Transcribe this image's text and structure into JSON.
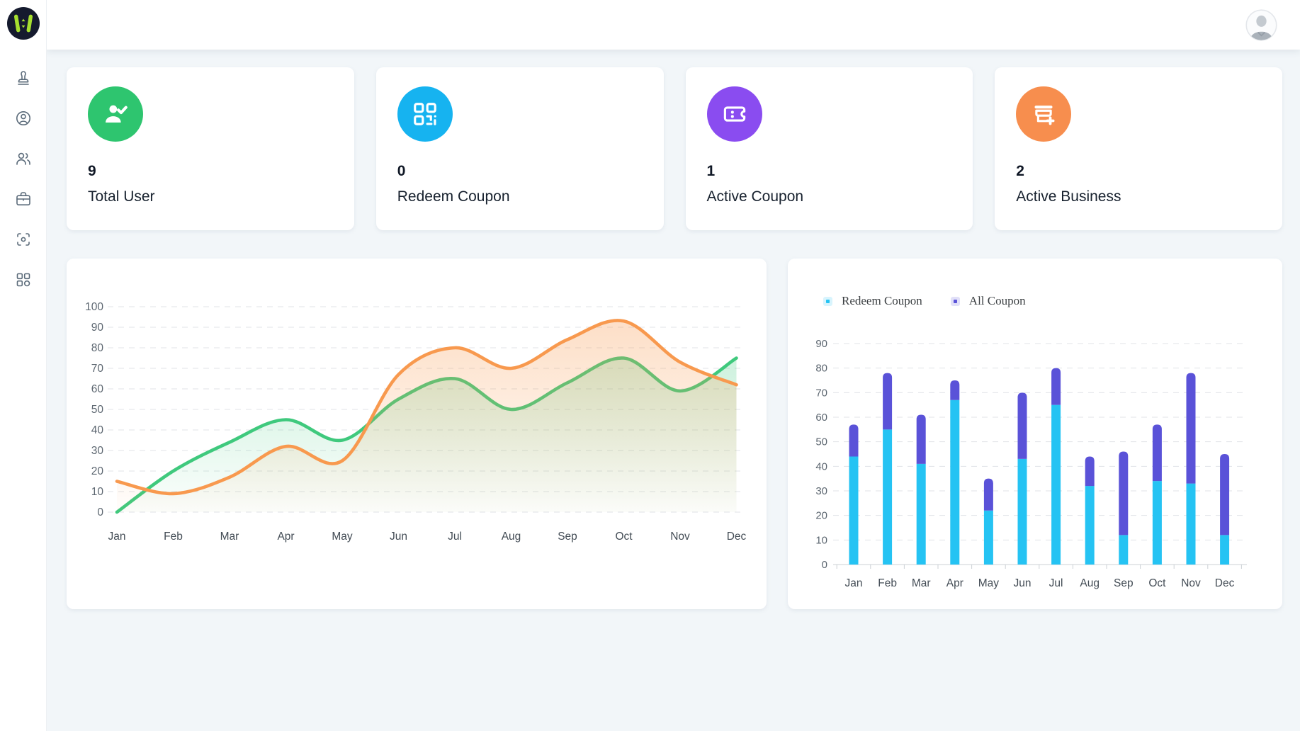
{
  "sidebar": {
    "items": [
      {
        "icon": "stamp-icon"
      },
      {
        "icon": "user-circle-icon"
      },
      {
        "icon": "users-icon"
      },
      {
        "icon": "briefcase-icon"
      },
      {
        "icon": "scan-icon"
      },
      {
        "icon": "apps-grid-icon"
      }
    ],
    "logo_colors": {
      "circle": "#151a2e",
      "mark": "#a6df2f"
    }
  },
  "stats": [
    {
      "value": "9",
      "label": "Total User",
      "color": "#2ec56f",
      "icon": "user-check-icon"
    },
    {
      "value": "0",
      "label": "Redeem Coupon",
      "color": "#16b3f0",
      "icon": "qr-code-icon"
    },
    {
      "value": "1",
      "label": "Active Coupon",
      "color": "#8a4cf0",
      "icon": "ticket-icon"
    },
    {
      "value": "2",
      "label": "Active Business",
      "color": "#f78e4e",
      "icon": "store-plus-icon"
    }
  ],
  "chart_data": [
    {
      "type": "line",
      "title": "",
      "x": [
        "Jan",
        "Feb",
        "Mar",
        "Apr",
        "May",
        "Jun",
        "Jul",
        "Aug",
        "Sep",
        "Oct",
        "Nov",
        "Dec"
      ],
      "series": [
        {
          "name": "green",
          "color": "#3fc97d",
          "values": [
            0,
            20,
            34,
            45,
            35,
            55,
            65,
            50,
            63,
            75,
            59,
            75
          ]
        },
        {
          "name": "orange",
          "color": "#f8994e",
          "values": [
            15,
            9,
            17,
            32,
            25,
            67,
            80,
            70,
            84,
            93,
            73,
            62
          ]
        }
      ],
      "ylim": [
        0,
        100
      ],
      "ytick": 10,
      "smooth": true,
      "area": true,
      "grid": "dashed-horizontal",
      "legend_position": "none"
    },
    {
      "type": "bar",
      "stacked": true,
      "categories": [
        "Jan",
        "Feb",
        "Mar",
        "Apr",
        "May",
        "Jun",
        "Jul",
        "Aug",
        "Sep",
        "Oct",
        "Nov",
        "Dec"
      ],
      "series": [
        {
          "name": "Redeem Coupon",
          "color": "#25c3f3",
          "values": [
            44,
            55,
            41,
            67,
            22,
            43,
            65,
            32,
            12,
            34,
            33,
            12
          ]
        },
        {
          "name": "All Coupon",
          "color": "#5a52d8",
          "values": [
            13,
            23,
            20,
            8,
            13,
            27,
            15,
            12,
            34,
            23,
            45,
            33
          ]
        }
      ],
      "totals": [
        57,
        78,
        61,
        75,
        35,
        70,
        80,
        44,
        46,
        57,
        78,
        45
      ],
      "ylim": [
        0,
        90
      ],
      "ytick": 10,
      "grid": "dashed-horizontal",
      "legend_position": "top-left"
    }
  ]
}
